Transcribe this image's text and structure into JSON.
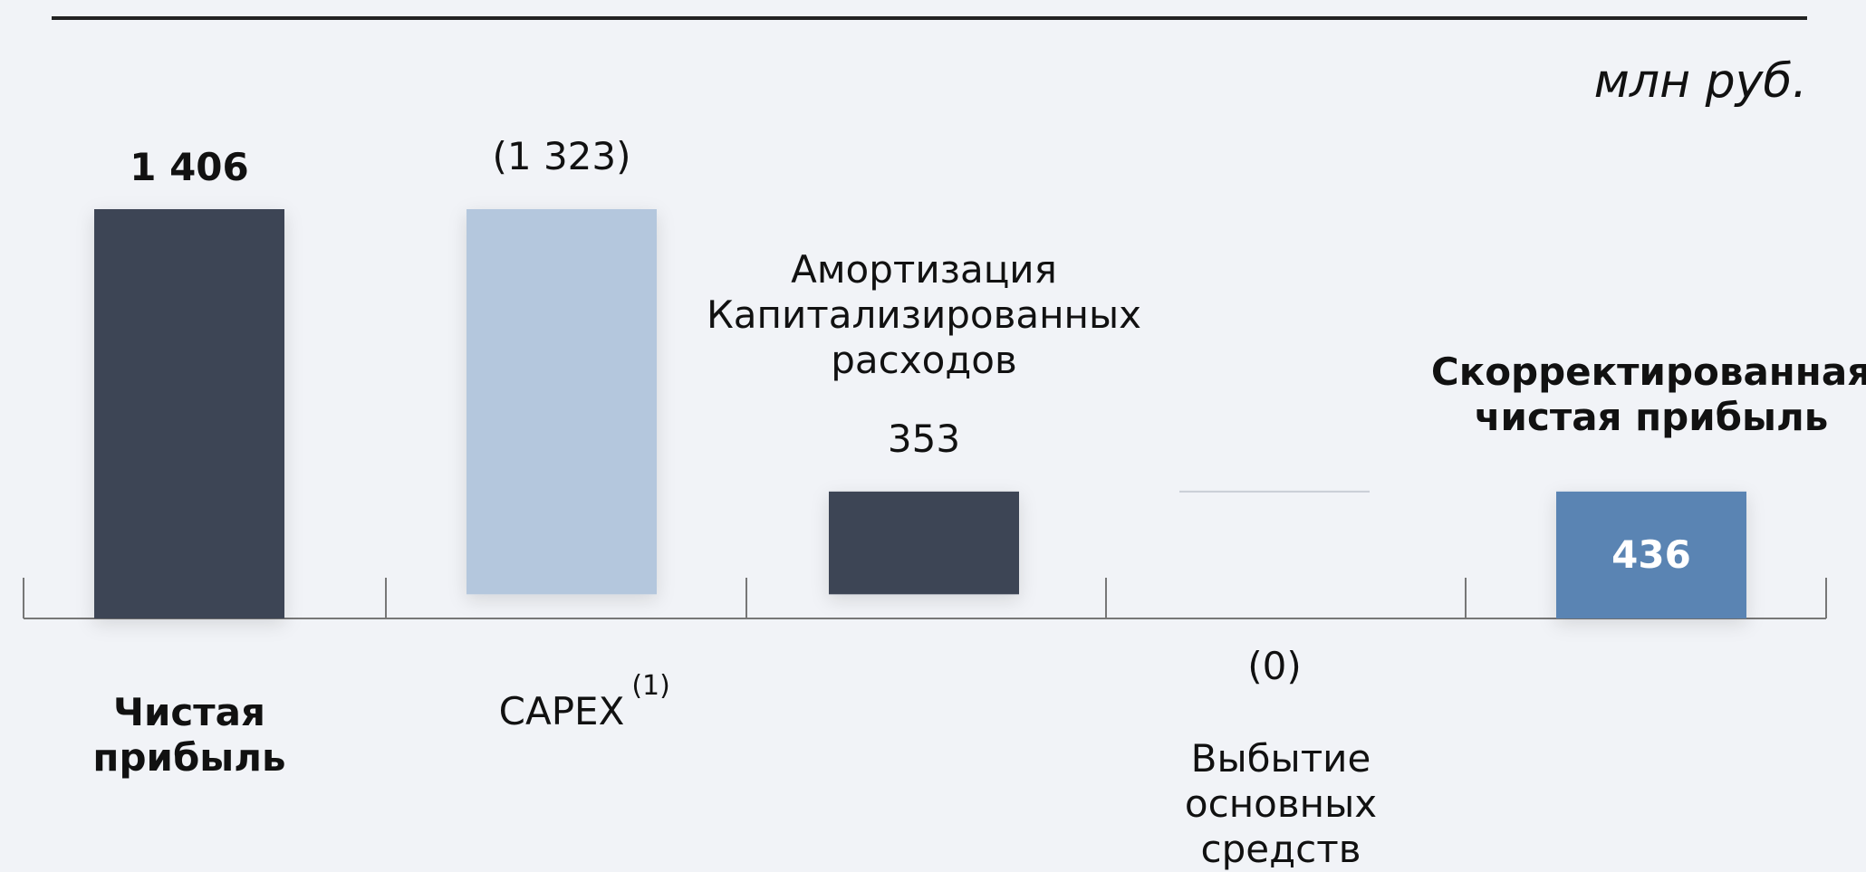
{
  "chart_data": {
    "type": "waterfall",
    "unit": "млн руб.",
    "categories": [
      "Чистая\nприбыль",
      "CAPEX",
      "Амортизация\nКапитализированных\nрасходов",
      "Выбытие\nосновных\nсредств",
      "Скорректированная\nчистая прибыль"
    ],
    "footnote": "(1)",
    "measure": [
      "total",
      "relative",
      "relative",
      "relative",
      "total"
    ],
    "values": [
      1406,
      -1323,
      353,
      0,
      436
    ],
    "value_labels": [
      "1 406",
      "(1 323)",
      "353",
      "(0)",
      "436"
    ],
    "colors": [
      "#3d4455",
      "#b4c7dd",
      "#3d4455",
      "#c9ced6",
      "#5a84b3"
    ]
  }
}
